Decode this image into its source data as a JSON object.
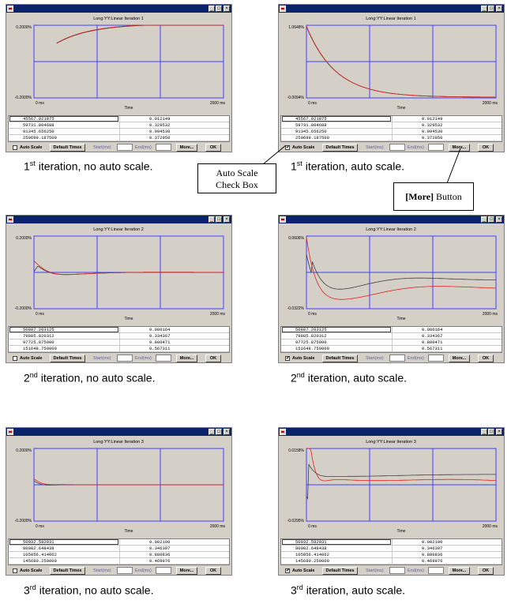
{
  "windows": [
    {
      "title": "Long:YY:Linear   Iteration 1",
      "auto_scale_checked": false,
      "y_top": "0.2000%",
      "y_bottom": "-0.2000%",
      "x_left": "0 ms",
      "x_right": "2000 ms",
      "x_label": "Time",
      "rows": [
        [
          "45567.921875",
          "0.012149"
        ],
        [
          "59731.804688",
          "0.329532"
        ],
        [
          "91345.656250",
          "0.994530"
        ],
        [
          "250699.187500",
          "0.372950"
        ]
      ]
    },
    {
      "title": "Long:YY:Linear   Iteration 1",
      "auto_scale_checked": true,
      "y_top": "1.0648%",
      "y_bottom": "-0.0094%",
      "x_left": "0 ms",
      "x_right": "2000 ms",
      "x_label": "Time",
      "rows": [
        [
          "45567.921875",
          "0.012149"
        ],
        [
          "59731.804688",
          "0.329532"
        ],
        [
          "91345.656250",
          "0.994530"
        ],
        [
          "250699.187500",
          "0.372950"
        ]
      ]
    },
    {
      "title": "Long:YY:Linear   Iteration 2",
      "auto_scale_checked": false,
      "y_top": "0.2000%",
      "y_bottom": "-0.2000%",
      "x_left": "0 ms",
      "x_right": "2000 ms",
      "x_label": "Time",
      "rows": [
        [
          "50887.203125",
          "0.000164"
        ],
        [
          "79885.820312",
          "0.334367"
        ],
        [
          "97725.875000",
          "0.800471"
        ],
        [
          "151648.750000",
          "0.567311"
        ]
      ]
    },
    {
      "title": "Long:YY:Linear   Iteration 2",
      "auto_scale_checked": true,
      "y_top": "0.0606%",
      "y_bottom": "-0.0322%",
      "x_left": "0 ms",
      "x_right": "2000 ms",
      "x_label": "Time",
      "rows": [
        [
          "50887.203125",
          "0.000164"
        ],
        [
          "79885.820312",
          "0.334367"
        ],
        [
          "97725.875000",
          "0.800471"
        ],
        [
          "151648.750000",
          "0.567311"
        ]
      ]
    },
    {
      "title": "Long:YY:Linear   Iteration 3",
      "auto_scale_checked": false,
      "y_top": "0.2000%",
      "y_bottom": "-0.2000%",
      "x_left": "0 ms",
      "x_right": "2000 ms",
      "x_label": "Time",
      "rows": [
        [
          "50032.582031",
          "0.002190"
        ],
        [
          "80082.648438",
          "0.346397"
        ],
        [
          "105056.414062",
          "0.880836"
        ],
        [
          "145680.250000",
          "0.469976"
        ]
      ]
    },
    {
      "title": "Long:YY:Linear   Iteration 3",
      "auto_scale_checked": true,
      "y_top": "0.0158%",
      "y_bottom": "-0.0295%",
      "x_left": "0 ms",
      "x_right": "2000 ms",
      "x_label": "Time",
      "rows": [
        [
          "50032.582031",
          "0.002190"
        ],
        [
          "80082.648438",
          "0.346397"
        ],
        [
          "105056.414062",
          "0.880836"
        ],
        [
          "145680.250000",
          "0.469976"
        ]
      ]
    }
  ],
  "controls": {
    "auto_scale_label": "Auto Scale",
    "default_times_label": "Default Times",
    "start_label": "Start(ms)",
    "end_label": "End(ms)",
    "more_label": "More...",
    "ok_label": "OK",
    "check_mark": "✔"
  },
  "captions": [
    {
      "num": "1",
      "sup": "st",
      "text": " iteration, no auto scale."
    },
    {
      "num": "1",
      "sup": "st",
      "text": " iteration, auto scale."
    },
    {
      "num": "2",
      "sup": "nd",
      "text": " iteration, no auto scale."
    },
    {
      "num": "2",
      "sup": "nd",
      "text": " iteration, auto scale."
    },
    {
      "num": "3",
      "sup": "rd",
      "text": " iteration, no auto scale."
    },
    {
      "num": "3",
      "sup": "rd",
      "text": " iteration, auto scale."
    }
  ],
  "callouts": {
    "auto_scale_line1": "Auto Scale",
    "auto_scale_line2": "Check Box",
    "more_bold": "[More]",
    "more_rest": " Button"
  },
  "colors": {
    "plot_frame": "#4040ff",
    "measured_curve": "#404040",
    "fitted_curve": "#e02020",
    "title_bar": "#0a246a"
  }
}
